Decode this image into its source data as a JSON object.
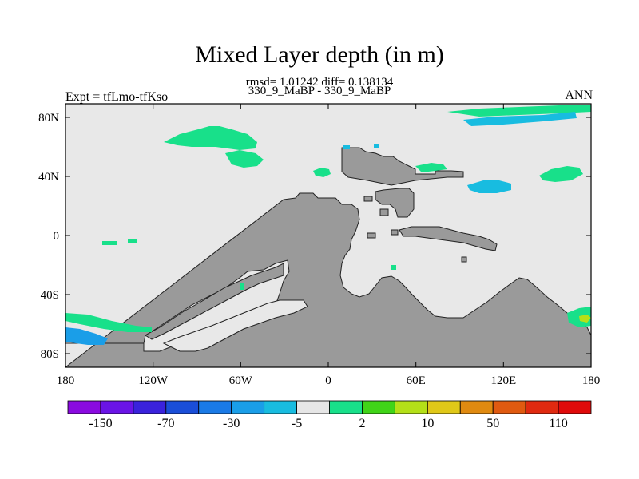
{
  "title": "Mixed Layer depth (in m)",
  "stats_line": "rmsd= 1.01242 diff= 0.138134",
  "subtitle": "330_9_MaBP - 330_9_MaBP",
  "left_label": "Expt = tfLmo-tfKso",
  "right_label": "ANN",
  "map": {
    "lat_ticks": [
      "80N",
      "40N",
      "0",
      "40S",
      "80S"
    ],
    "lon_ticks": [
      "180",
      "120W",
      "60W",
      "0",
      "60E",
      "120E",
      "180"
    ],
    "colors": {
      "ocean": "#e8e8e8",
      "land": "#9a9a9a"
    }
  },
  "colorbar": {
    "colors": [
      "#8a0ae0",
      "#6a14e6",
      "#3a22dc",
      "#1a4ed8",
      "#1a7ae6",
      "#1a9ee8",
      "#18bce0",
      "#e6e6e6",
      "#18e08a",
      "#40d418",
      "#b4e018",
      "#e0c818",
      "#e08a10",
      "#e05a10",
      "#e02a10",
      "#e00a0a"
    ],
    "labels": [
      "-150",
      "-70",
      "-30",
      "-5",
      "2",
      "10",
      "50",
      "110"
    ]
  }
}
